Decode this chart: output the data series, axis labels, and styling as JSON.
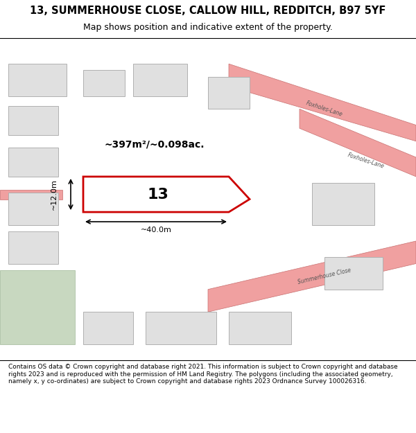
{
  "title_line1": "13, SUMMERHOUSE CLOSE, CALLOW HILL, REDDITCH, B97 5YF",
  "title_line2": "Map shows position and indicative extent of the property.",
  "footer_text": "Contains OS data © Crown copyright and database right 2021. This information is subject to Crown copyright and database rights 2023 and is reproduced with the permission of HM Land Registry. The polygons (including the associated geometry, namely x, y co-ordinates) are subject to Crown copyright and database rights 2023 Ordnance Survey 100026316.",
  "area_text": "~397m²/~0.098ac.",
  "width_label": "~40.0m",
  "height_label": "~12.0m",
  "plot_number": "13",
  "bg_map_color": "#e8f0e8",
  "bg_footer_color": "#ffffff",
  "road_color": "#f0a0a0",
  "road_border_color": "#c87070",
  "highlight_color": "#cc0000",
  "building_fill": "#e0e0e0",
  "building_stroke": "#b0b0b0",
  "green_area_color": "#c8d8c0"
}
